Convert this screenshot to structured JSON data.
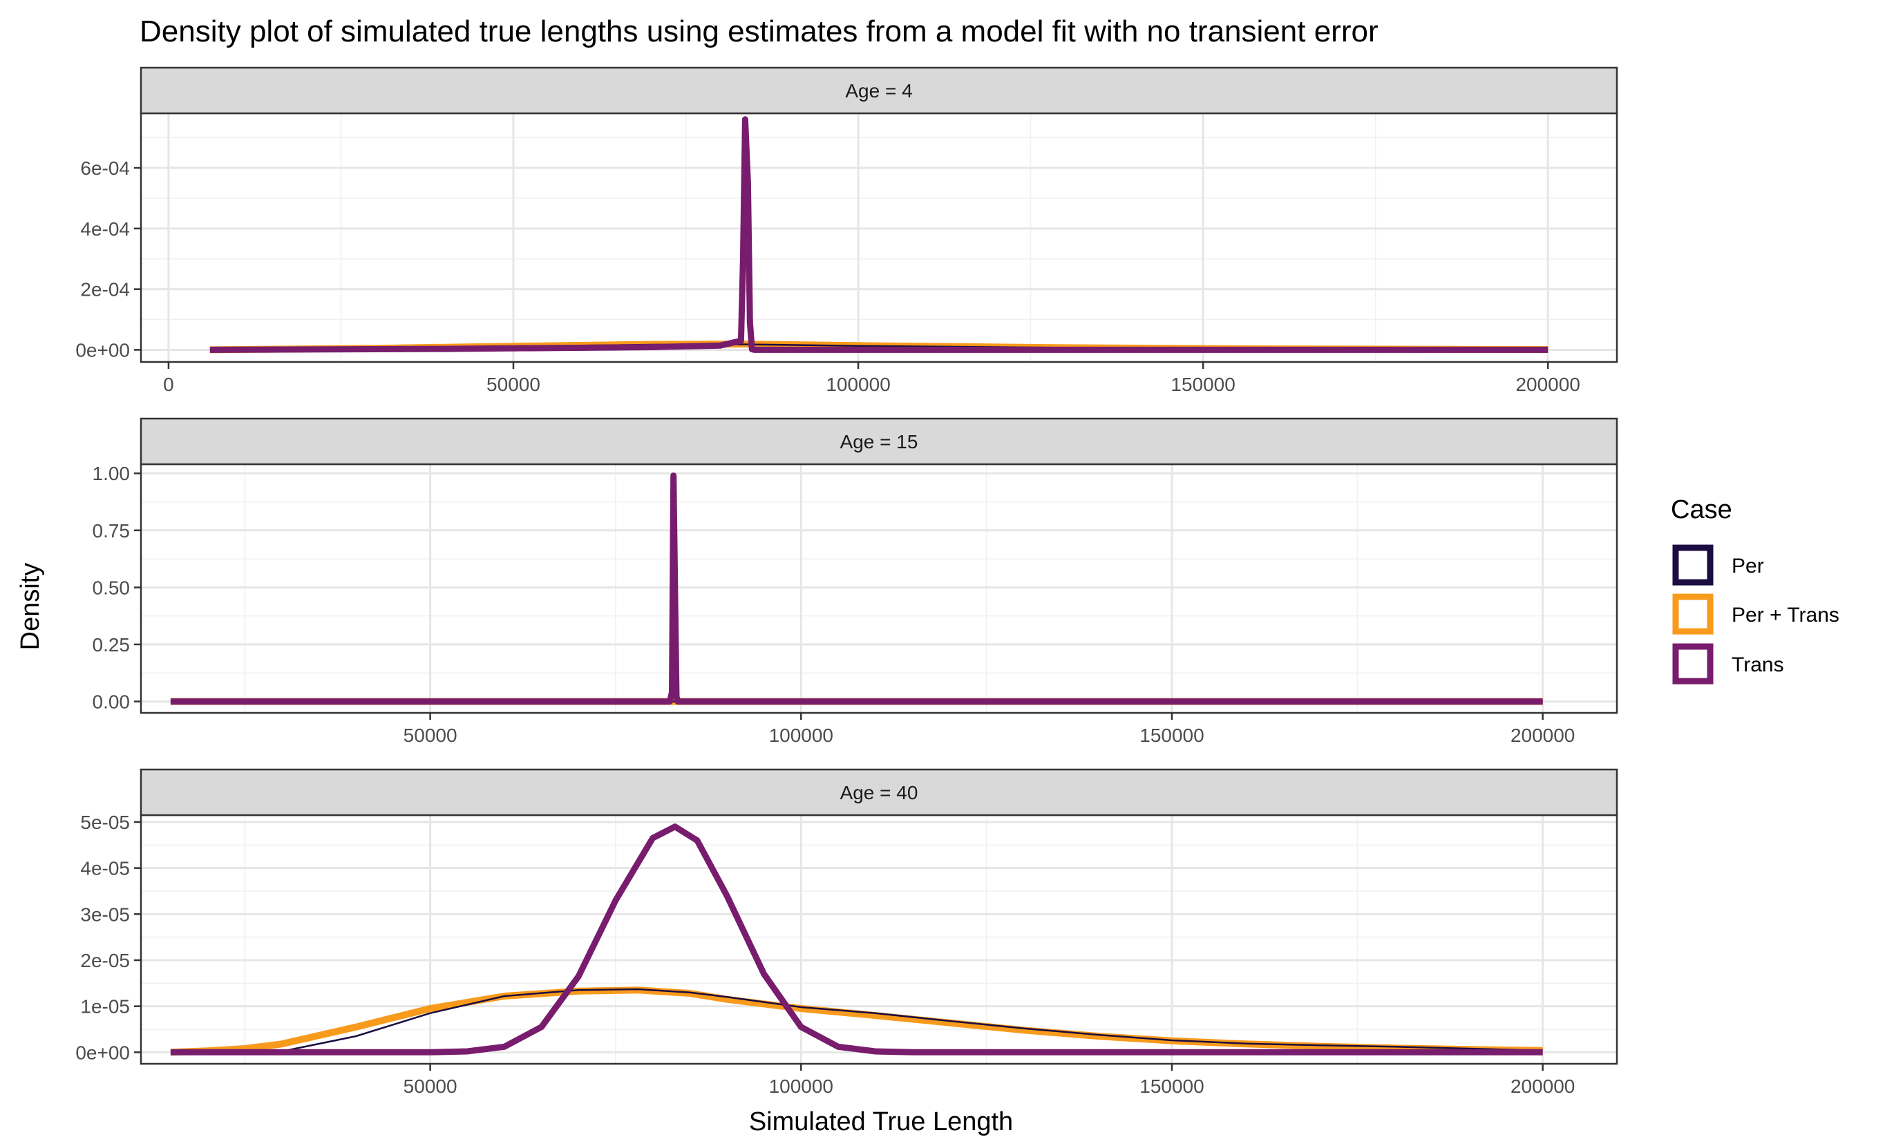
{
  "chart_data": {
    "type": "line",
    "title": "Density plot of simulated true lengths using estimates from a model fit with no transient error",
    "xlabel": "Simulated True Length",
    "ylabel": "Density",
    "legend": {
      "title": "Case",
      "position": "right"
    },
    "grid": true,
    "series_styles": [
      {
        "name": "Per",
        "color": "#1b0c41"
      },
      {
        "name": "Per + Trans",
        "color": "#f89a1c"
      },
      {
        "name": "Trans",
        "color": "#781c6d"
      }
    ],
    "panels": [
      {
        "strip": "Age = 4",
        "xlim": [
          -4000,
          210000
        ],
        "ylim": [
          -4e-05,
          0.00078
        ],
        "x_ticks": [
          0,
          50000,
          100000,
          150000,
          200000
        ],
        "x_tick_labels": [
          "0",
          "50000",
          "100000",
          "150000",
          "200000"
        ],
        "y_ticks": [
          0,
          0.0002,
          0.0004,
          0.0006
        ],
        "y_tick_labels": [
          "0e+00",
          "2e-04",
          "4e-04",
          "6e-04"
        ],
        "series": [
          {
            "name": "Per",
            "x": [
              6000,
              30000,
              50000,
              70000,
              83000,
              100000,
              130000,
              160000,
              200000
            ],
            "y": [
              0,
              5e-06,
              1.1e-05,
              1.7e-05,
              1.8e-05,
              1.3e-05,
              7e-06,
              3e-06,
              1e-06
            ]
          },
          {
            "name": "Per + Trans",
            "x": [
              6000,
              30000,
              50000,
              70000,
              83000,
              100000,
              130000,
              160000,
              200000
            ],
            "y": [
              0,
              5e-06,
              1.2e-05,
              1.8e-05,
              1.9e-05,
              1.4e-05,
              7e-06,
              3e-06,
              1e-06
            ]
          },
          {
            "name": "Trans",
            "x": [
              6000,
              40000,
              70000,
              80000,
              83000,
              83300,
              83600,
              84000,
              84300,
              84600,
              85000,
              100000,
              200000
            ],
            "y": [
              0,
              3e-06,
              9e-06,
              1.4e-05,
              3e-05,
              0.0003,
              0.00076,
              0.00055,
              9e-05,
              2e-06,
              0,
              0,
              0
            ]
          }
        ]
      },
      {
        "strip": "Age = 15",
        "xlim": [
          11000,
          210000
        ],
        "ylim": [
          -0.05,
          1.04
        ],
        "x_ticks": [
          50000,
          100000,
          150000,
          200000
        ],
        "x_tick_labels": [
          "50000",
          "100000",
          "150000",
          "200000"
        ],
        "y_ticks": [
          0,
          0.25,
          0.5,
          0.75,
          1.0
        ],
        "y_tick_labels": [
          "0.00",
          "0.25",
          "0.50",
          "0.75",
          "1.00"
        ],
        "series": [
          {
            "name": "Per",
            "x": [
              15000,
              82000,
              200000
            ],
            "y": [
              0,
              0,
              0
            ]
          },
          {
            "name": "Per + Trans",
            "x": [
              15000,
              82000,
              200000
            ],
            "y": [
              0,
              0,
              0
            ]
          },
          {
            "name": "Trans",
            "x": [
              15000,
              82300,
              82600,
              82800,
              83000,
              83200,
              83400,
              200000
            ],
            "y": [
              0,
              0,
              0.04,
              0.99,
              0.5,
              0.02,
              0,
              0
            ]
          }
        ]
      },
      {
        "strip": "Age = 40",
        "xlim": [
          11000,
          210000
        ],
        "ylim": [
          -2.5e-06,
          5.15e-05
        ],
        "x_ticks": [
          50000,
          100000,
          150000,
          200000
        ],
        "x_tick_labels": [
          "50000",
          "100000",
          "150000",
          "200000"
        ],
        "y_ticks": [
          0,
          1e-05,
          2e-05,
          3e-05,
          4e-05,
          5e-05
        ],
        "y_tick_labels": [
          "0e+00",
          "1e-05",
          "2e-05",
          "3e-05",
          "4e-05",
          "5e-05"
        ],
        "series": [
          {
            "name": "Per",
            "x": [
              15000,
              25000,
              30000,
              40000,
              50000,
              60000,
              70000,
              78000,
              85000,
              90000,
              100000,
              110000,
              120000,
              130000,
              140000,
              150000,
              160000,
              170000,
              180000,
              190000,
              200000
            ],
            "y": [
              0,
              0,
              2e-07,
              3.5e-06,
              8.5e-06,
              1.22e-05,
              1.35e-05,
              1.37e-05,
              1.3e-05,
              1.2e-05,
              9.8e-06,
              8.5e-06,
              6.8e-06,
              5.2e-06,
              3.8e-06,
              2.6e-06,
              1.9e-06,
              1.5e-06,
              1.2e-06,
              8e-07,
              4e-07
            ]
          },
          {
            "name": "Per + Trans",
            "x": [
              15000,
              20000,
              25000,
              30000,
              40000,
              50000,
              60000,
              70000,
              78000,
              85000,
              90000,
              100000,
              110000,
              120000,
              130000,
              140000,
              150000,
              160000,
              170000,
              180000,
              190000,
              200000
            ],
            "y": [
              0,
              3e-07,
              8e-07,
              1.8e-06,
              5.5e-06,
              9.5e-06,
              1.22e-05,
              1.33e-05,
              1.35e-05,
              1.28e-05,
              1.15e-05,
              9.5e-06,
              8e-06,
              6.4e-06,
              4.8e-06,
              3.5e-06,
              2.5e-06,
              1.8e-06,
              1.3e-06,
              9e-07,
              6e-07,
              4e-07
            ]
          },
          {
            "name": "Trans",
            "x": [
              15000,
              50000,
              55000,
              60000,
              65000,
              70000,
              75000,
              80000,
              83000,
              86000,
              90000,
              95000,
              100000,
              105000,
              110000,
              115000,
              120000,
              200000
            ],
            "y": [
              0,
              0,
              2e-07,
              1.2e-06,
              5.5e-06,
              1.65e-05,
              3.3e-05,
              4.65e-05,
              4.9e-05,
              4.6e-05,
              3.4e-05,
              1.7e-05,
              5.5e-06,
              1.2e-06,
              2e-07,
              0,
              0,
              0
            ]
          }
        ]
      }
    ]
  }
}
